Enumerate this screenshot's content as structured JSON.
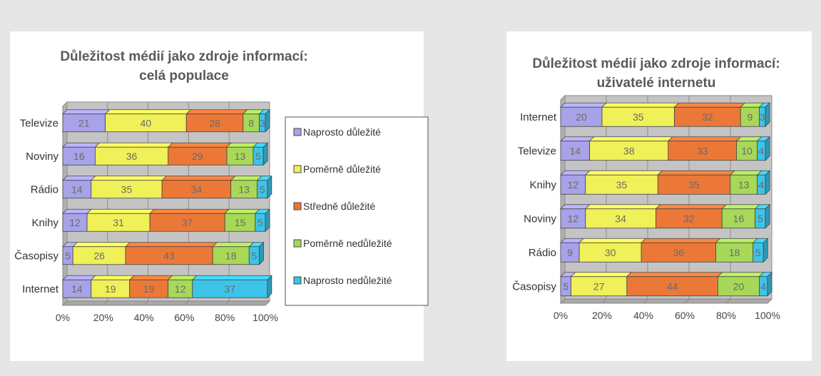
{
  "colors": {
    "naprosto_dulezite": "#a8a2e8",
    "pomerne_dulezite": "#f0f058",
    "stredne_dulezite": "#ec7838",
    "pomerne_nedulezite": "#a8d858",
    "naprosto_nedulezite": "#3cc4e8"
  },
  "chart_data": [
    {
      "type": "bar",
      "orientation": "horizontal",
      "stacked": true,
      "title": "Důležitost médií jako zdroje informací:",
      "subtitle": "celá populace",
      "categories": [
        "Televize",
        "Noviny",
        "Rádio",
        "Knihy",
        "Časopisy",
        "Internet"
      ],
      "series": [
        {
          "name": "Naprosto důležité",
          "values": [
            21,
            16,
            14,
            12,
            5,
            14
          ]
        },
        {
          "name": "Poměrně důležité",
          "values": [
            40,
            36,
            35,
            31,
            26,
            19
          ]
        },
        {
          "name": "Středně důležité",
          "values": [
            28,
            29,
            34,
            37,
            43,
            19
          ]
        },
        {
          "name": "Poměrně nedůležité",
          "values": [
            8,
            13,
            13,
            15,
            18,
            12
          ]
        },
        {
          "name": "Naprosto nedůležité",
          "values": [
            3,
            5,
            5,
            5,
            5,
            37
          ]
        }
      ],
      "xticks": [
        "0%",
        "20%",
        "40%",
        "60%",
        "80%",
        "100%"
      ],
      "xlim": [
        0,
        100
      ],
      "grid": true,
      "legend": "right"
    },
    {
      "type": "bar",
      "orientation": "horizontal",
      "stacked": true,
      "title": "Důležitost médií jako zdroje informací:",
      "subtitle": "uživatelé internetu",
      "categories": [
        "Internet",
        "Televize",
        "Knihy",
        "Noviny",
        "Rádio",
        "Časopisy"
      ],
      "series": [
        {
          "name": "Naprosto důležité",
          "values": [
            20,
            14,
            12,
            12,
            9,
            5
          ]
        },
        {
          "name": "Poměrně důležité",
          "values": [
            35,
            38,
            35,
            34,
            30,
            27
          ]
        },
        {
          "name": "Středně důležité",
          "values": [
            32,
            33,
            35,
            32,
            36,
            44
          ]
        },
        {
          "name": "Poměrně nedůležité",
          "values": [
            9,
            10,
            13,
            16,
            18,
            20
          ]
        },
        {
          "name": "Naprosto nedůležité",
          "values": [
            3,
            4,
            4,
            5,
            5,
            4
          ]
        }
      ],
      "xticks": [
        "0%",
        "20%",
        "40%",
        "60%",
        "80%",
        "100%"
      ],
      "xlim": [
        0,
        100
      ],
      "grid": true,
      "legend": "none"
    }
  ]
}
